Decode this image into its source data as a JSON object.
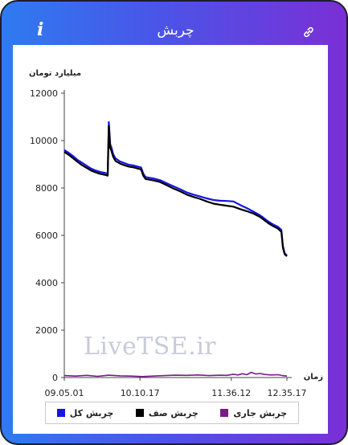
{
  "header": {
    "title": "چربش",
    "info_glyph": "i",
    "icons": {
      "left": "info-icon",
      "right": "link-icon"
    }
  },
  "watermark": "LiveTSE.ir",
  "colors": {
    "header_gradient_start": "#2e7bf0",
    "header_gradient_end": "#7a2fd6"
  },
  "chart_data": {
    "type": "line",
    "ylabel": "میلیارد تومان",
    "xlabel": "زمان",
    "ylim": [
      0,
      12000
    ],
    "yticks": [
      0,
      2000,
      4000,
      6000,
      8000,
      10000,
      12000
    ],
    "xlim": [
      0,
      100
    ],
    "xticks": [
      {
        "x": 0,
        "label": "09.05.01"
      },
      {
        "x": 34,
        "label": "10.10.17"
      },
      {
        "x": 75,
        "label": "11.36.12"
      },
      {
        "x": 100,
        "label": "12.35.17"
      }
    ],
    "legend_position": "bottom",
    "series": [
      {
        "name": "چربش کل",
        "color": "#1414e6",
        "x": [
          0,
          2,
          4,
          6,
          8,
          10,
          12,
          14,
          16,
          18,
          19.5,
          20,
          20.6,
          21.2,
          22,
          23,
          25,
          27,
          29,
          31,
          33,
          34.5,
          35.5,
          36.5,
          37,
          40,
          43,
          46,
          49,
          52,
          55,
          58,
          61,
          64,
          67,
          70,
          73,
          76,
          79,
          82,
          85,
          88,
          90,
          92,
          94,
          96,
          97.5,
          98.2,
          99,
          100
        ],
        "values": [
          9600,
          9480,
          9340,
          9180,
          9060,
          8940,
          8820,
          8740,
          8680,
          8640,
          8600,
          10780,
          9850,
          9700,
          9420,
          9250,
          9120,
          9050,
          8980,
          8950,
          8900,
          8860,
          8600,
          8460,
          8450,
          8400,
          8330,
          8200,
          8070,
          7950,
          7810,
          7720,
          7640,
          7560,
          7490,
          7460,
          7450,
          7430,
          7280,
          7150,
          7000,
          6840,
          6700,
          6560,
          6450,
          6360,
          6230,
          5550,
          5250,
          5150
        ]
      },
      {
        "name": "چربش صف",
        "color": "#000000",
        "x": [
          0,
          2,
          4,
          6,
          8,
          10,
          12,
          14,
          16,
          18,
          19.5,
          20,
          20.6,
          21.2,
          22,
          23,
          25,
          27,
          29,
          31,
          33,
          34.5,
          35.5,
          36.5,
          37,
          40,
          43,
          46,
          49,
          52,
          55,
          58,
          61,
          64,
          67,
          70,
          73,
          76,
          79,
          82,
          85,
          88,
          90,
          92,
          94,
          96,
          97.5,
          98.2,
          99,
          100
        ],
        "values": [
          9520,
          9400,
          9250,
          9100,
          8960,
          8850,
          8740,
          8660,
          8600,
          8560,
          8520,
          10620,
          9700,
          9560,
          9310,
          9140,
          9030,
          8960,
          8900,
          8870,
          8820,
          8780,
          8520,
          8380,
          8370,
          8320,
          8250,
          8120,
          7980,
          7860,
          7720,
          7620,
          7540,
          7430,
          7340,
          7290,
          7250,
          7210,
          7110,
          7020,
          6920,
          6770,
          6630,
          6490,
          6380,
          6280,
          6150,
          5480,
          5200,
          5120
        ]
      },
      {
        "name": "چربش جاری",
        "color": "#7a1a8a",
        "x": [
          0,
          5,
          10,
          15,
          20,
          25,
          30,
          35,
          40,
          45,
          50,
          55,
          60,
          65,
          70,
          73,
          76,
          78,
          80,
          82,
          84,
          86,
          88,
          90,
          93,
          96,
          98,
          100
        ],
        "values": [
          80,
          60,
          90,
          50,
          100,
          70,
          60,
          40,
          60,
          80,
          100,
          90,
          110,
          80,
          100,
          90,
          140,
          110,
          160,
          120,
          220,
          150,
          170,
          130,
          110,
          120,
          80,
          60
        ]
      }
    ]
  }
}
